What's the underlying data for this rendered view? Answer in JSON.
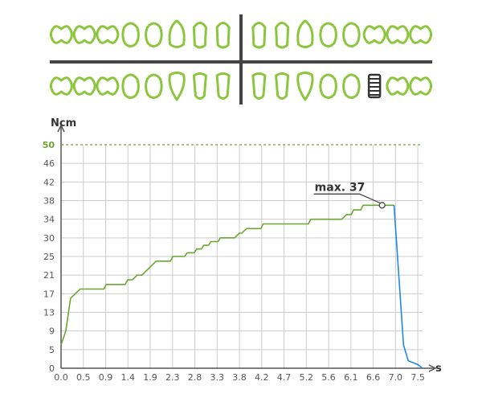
{
  "teeth_chart": {
    "upper_left": [
      "molar",
      "molar",
      "molar",
      "premolar",
      "premolar",
      "canine",
      "incisor",
      "incisor"
    ],
    "upper_right": [
      "incisor",
      "incisor",
      "canine",
      "premolar",
      "premolar",
      "molar",
      "molar",
      "molar"
    ],
    "lower_left": [
      "molar",
      "molar",
      "molar",
      "premolar",
      "premolar",
      "canine",
      "incisor",
      "incisor"
    ],
    "lower_right": [
      "incisor",
      "incisor",
      "canine",
      "premolar",
      "premolar",
      "implant",
      "molar",
      "molar"
    ],
    "implant_position": "lower-right, 6th from midline",
    "tooth_color": "#7dc242",
    "implant_color": "#333333"
  },
  "colors": {
    "tooth_outline": "#8cc63f",
    "grid": "#cccccc",
    "axis": "#555555",
    "torque_line": "#6aa732",
    "release_line": "#1e88e5",
    "threshold_line": "#6aa732",
    "threshold_label": "#6aa732"
  },
  "chart_data": {
    "type": "line",
    "title": "",
    "xlabel": "s",
    "ylabel": "Ncm",
    "x_ticks": [
      "0.0",
      "0.5",
      "0.9",
      "1.4",
      "1.9",
      "2.3",
      "2.8",
      "3.3",
      "3.8",
      "4.2",
      "4.7",
      "5.2",
      "5.6",
      "6.1",
      "6.6",
      "7.0",
      "7.5"
    ],
    "y_ticks": [
      "0",
      "5",
      "9",
      "13",
      "17",
      "21",
      "25",
      "30",
      "34",
      "38",
      "42",
      "46",
      "50"
    ],
    "grid": true,
    "threshold": {
      "value": 50,
      "label": "50",
      "style": "dashed"
    },
    "annotation": {
      "text": "max. 37",
      "x": 6.75,
      "y": 37
    },
    "series": [
      {
        "x": [
          0.0,
          0.1,
          0.2,
          0.3,
          0.4,
          0.5,
          0.6,
          0.9,
          0.95,
          1.35,
          1.4,
          1.5,
          1.6,
          1.7,
          1.8,
          1.9,
          2.0,
          2.3,
          2.35,
          2.6,
          2.65,
          2.8,
          2.85,
          2.95,
          3.0,
          3.1,
          3.15,
          3.3,
          3.35,
          3.6,
          3.65,
          3.75,
          3.8,
          3.9,
          3.95,
          4.2,
          4.25,
          4.7,
          4.75,
          5.2,
          5.25,
          5.6,
          5.65,
          5.9,
          6.0,
          6.1,
          6.15,
          6.3,
          6.35,
          6.5,
          6.6,
          6.75,
          6.8,
          7.0
        ],
        "y": [
          6,
          9,
          16,
          17,
          18,
          18,
          18,
          18,
          19,
          19,
          20,
          20,
          21,
          21,
          22,
          23,
          24,
          24,
          25,
          25,
          26,
          26,
          27,
          27,
          28,
          28,
          29,
          29,
          30,
          30,
          30,
          31,
          31,
          32,
          32,
          32,
          33,
          33,
          33,
          33,
          34,
          34,
          34,
          34,
          35,
          35,
          36,
          36,
          37,
          37,
          37,
          37,
          37,
          37
        ]
      },
      {
        "x": [
          7.0,
          7.1,
          7.2,
          7.3,
          7.5,
          7.6
        ],
        "y": [
          37,
          21,
          6,
          2,
          1,
          0
        ]
      }
    ]
  }
}
